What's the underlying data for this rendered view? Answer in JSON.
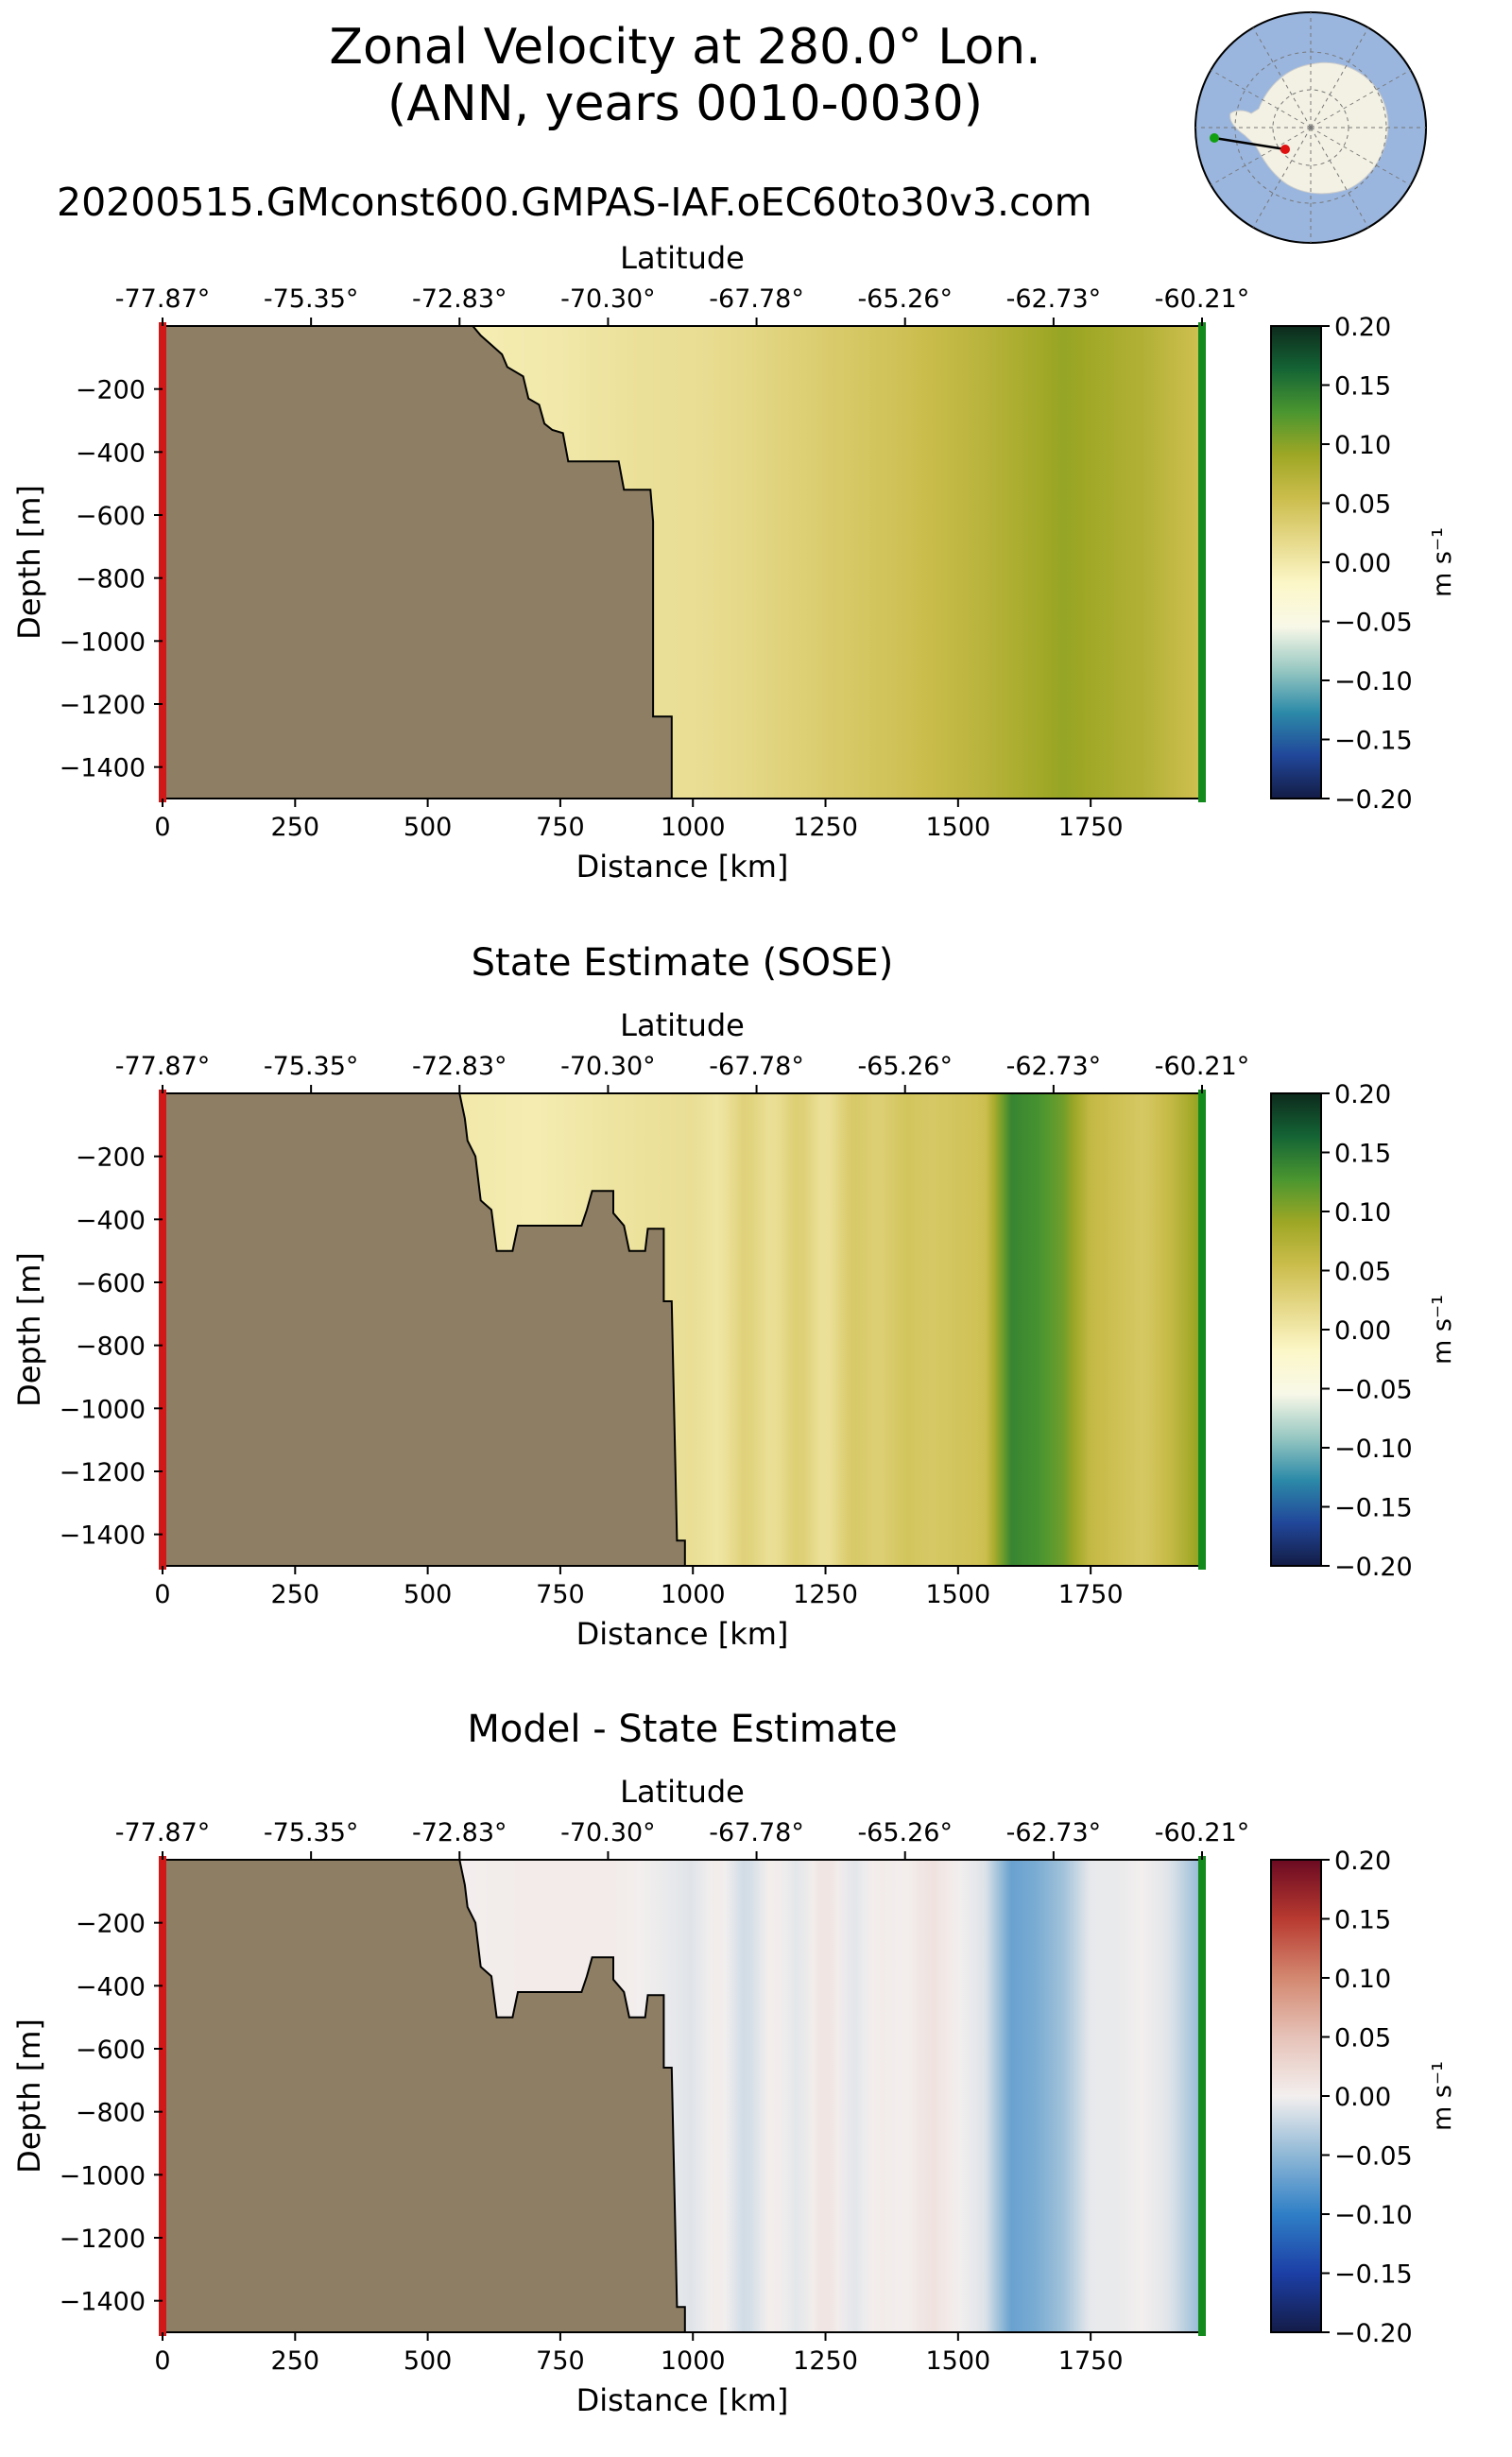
{
  "figure": {
    "title_line1": "Zonal Velocity at 280.0° Lon.",
    "title_line2": "(ANN, years 0010-0030)",
    "subtitle": "20200515.GMconst600.GMPAS-IAF.oEC60to30v3.com"
  },
  "chart_data": [
    {
      "type": "heatmap",
      "title": "",
      "xlabel": "Distance [km]",
      "ylabel": "Depth [m]",
      "top_axis_label": "Latitude",
      "xlim": [
        0,
        1960
      ],
      "ylim": [
        -1500,
        0
      ],
      "x_ticks": [
        0,
        250,
        500,
        750,
        1000,
        1250,
        1500,
        1750
      ],
      "x_tick_labels": [
        "0",
        "250",
        "500",
        "750",
        "1000",
        "1250",
        "1500",
        "1750"
      ],
      "y_ticks": [
        -200,
        -400,
        -600,
        -800,
        -1000,
        -1200,
        -1400
      ],
      "y_tick_labels": [
        "−200",
        "−400",
        "−600",
        "−800",
        "−1000",
        "−1200",
        "−1400"
      ],
      "top_ticks": [
        0,
        280,
        560,
        840,
        1120,
        1400,
        1680,
        1960
      ],
      "top_tick_labels": [
        "-77.87°",
        "-75.35°",
        "-72.83°",
        "-70.30°",
        "-67.78°",
        "-65.26°",
        "-62.73°",
        "-60.21°"
      ],
      "colorbar": {
        "label": "m s⁻¹",
        "min": -0.2,
        "max": 0.2,
        "ticks": [
          "0.20",
          "0.15",
          "0.10",
          "0.05",
          "0.00",
          "−0.05",
          "−0.10",
          "−0.15",
          "−0.20"
        ],
        "colormap": "diverging-blue-white-yellow-green",
        "colors": [
          "#131c45",
          "#21479a",
          "#2c8aa8",
          "#98c8c2",
          "#f8f8e8",
          "#fcf7c8",
          "#e6d98a",
          "#cbbd4c",
          "#9ea725",
          "#4a9630",
          "#146435",
          "#0d2a1c"
        ]
      },
      "bathymetry_km_m": [
        [
          0,
          0
        ],
        [
          0,
          -1500
        ],
        [
          960,
          -1500
        ],
        [
          960,
          -1240
        ],
        [
          925,
          -1240
        ],
        [
          925,
          -620
        ],
        [
          920,
          -520
        ],
        [
          870,
          -520
        ],
        [
          860,
          -430
        ],
        [
          765,
          -430
        ],
        [
          755,
          -340
        ],
        [
          735,
          -330
        ],
        [
          720,
          -310
        ],
        [
          710,
          -250
        ],
        [
          690,
          -230
        ],
        [
          680,
          -160
        ],
        [
          650,
          -130
        ],
        [
          640,
          -90
        ],
        [
          620,
          -60
        ],
        [
          600,
          -30
        ],
        [
          585,
          0
        ]
      ],
      "velocity_profile": {
        "x_km": [
          0,
          500,
          600,
          750,
          900,
          1000,
          1100,
          1250,
          1400,
          1550,
          1700,
          1850,
          1960
        ],
        "u_m_per_s": [
          0,
          0,
          -0.005,
          0.0,
          0.01,
          0.012,
          0.02,
          0.035,
          0.05,
          0.07,
          0.095,
          0.075,
          0.05
        ]
      }
    },
    {
      "type": "heatmap",
      "title": "State Estimate (SOSE)",
      "xlabel": "Distance [km]",
      "ylabel": "Depth [m]",
      "top_axis_label": "Latitude",
      "xlim": [
        0,
        1960
      ],
      "ylim": [
        -1500,
        0
      ],
      "x_ticks": [
        0,
        250,
        500,
        750,
        1000,
        1250,
        1500,
        1750
      ],
      "x_tick_labels": [
        "0",
        "250",
        "500",
        "750",
        "1000",
        "1250",
        "1500",
        "1750"
      ],
      "y_ticks": [
        -200,
        -400,
        -600,
        -800,
        -1000,
        -1200,
        -1400
      ],
      "y_tick_labels": [
        "−200",
        "−400",
        "−600",
        "−800",
        "−1000",
        "−1200",
        "−1400"
      ],
      "top_ticks": [
        0,
        280,
        560,
        840,
        1120,
        1400,
        1680,
        1960
      ],
      "top_tick_labels": [
        "-77.87°",
        "-75.35°",
        "-72.83°",
        "-70.30°",
        "-67.78°",
        "-65.26°",
        "-62.73°",
        "-60.21°"
      ],
      "colorbar": {
        "label": "m s⁻¹",
        "min": -0.2,
        "max": 0.2,
        "ticks": [
          "0.20",
          "0.15",
          "0.10",
          "0.05",
          "0.00",
          "−0.05",
          "−0.10",
          "−0.15",
          "−0.20"
        ],
        "colormap": "diverging-blue-white-yellow-green",
        "colors": [
          "#131c45",
          "#21479a",
          "#2c8aa8",
          "#98c8c2",
          "#f8f8e8",
          "#fcf7c8",
          "#e6d98a",
          "#cbbd4c",
          "#9ea725",
          "#4a9630",
          "#146435",
          "#0d2a1c"
        ]
      },
      "bathymetry_km_m": [
        [
          0,
          0
        ],
        [
          0,
          -1500
        ],
        [
          985,
          -1500
        ],
        [
          985,
          -1420
        ],
        [
          970,
          -1420
        ],
        [
          960,
          -660
        ],
        [
          945,
          -660
        ],
        [
          945,
          -430
        ],
        [
          915,
          -430
        ],
        [
          910,
          -500
        ],
        [
          880,
          -500
        ],
        [
          870,
          -420
        ],
        [
          850,
          -380
        ],
        [
          850,
          -310
        ],
        [
          810,
          -310
        ],
        [
          800,
          -370
        ],
        [
          790,
          -420
        ],
        [
          670,
          -420
        ],
        [
          660,
          -500
        ],
        [
          630,
          -500
        ],
        [
          620,
          -370
        ],
        [
          600,
          -340
        ],
        [
          590,
          -200
        ],
        [
          575,
          -150
        ],
        [
          570,
          -80
        ],
        [
          560,
          0
        ]
      ],
      "velocity_profile": {
        "x_km": [
          0,
          550,
          700,
          850,
          950,
          1000,
          1050,
          1100,
          1150,
          1200,
          1250,
          1300,
          1350,
          1400,
          1450,
          1500,
          1550,
          1600,
          1650,
          1700,
          1750,
          1800,
          1850,
          1900,
          1960
        ],
        "u_m_per_s": [
          0,
          0.0,
          -0.005,
          0.005,
          0.01,
          0.012,
          0.002,
          0.03,
          0.008,
          0.035,
          0.005,
          0.04,
          0.03,
          0.045,
          0.04,
          0.045,
          0.05,
          0.14,
          0.13,
          0.11,
          0.06,
          0.05,
          0.04,
          0.06,
          0.1
        ]
      }
    },
    {
      "type": "heatmap",
      "title": "Model - State Estimate",
      "xlabel": "Distance [km]",
      "ylabel": "Depth [m]",
      "top_axis_label": "Latitude",
      "xlim": [
        0,
        1960
      ],
      "ylim": [
        -1500,
        0
      ],
      "x_ticks": [
        0,
        250,
        500,
        750,
        1000,
        1250,
        1500,
        1750
      ],
      "x_tick_labels": [
        "0",
        "250",
        "500",
        "750",
        "1000",
        "1250",
        "1500",
        "1750"
      ],
      "y_ticks": [
        -200,
        -400,
        -600,
        -800,
        -1000,
        -1200,
        -1400
      ],
      "y_tick_labels": [
        "−200",
        "−400",
        "−600",
        "−800",
        "−1000",
        "−1200",
        "−1400"
      ],
      "top_ticks": [
        0,
        280,
        560,
        840,
        1120,
        1400,
        1680,
        1960
      ],
      "top_tick_labels": [
        "-77.87°",
        "-75.35°",
        "-72.83°",
        "-70.30°",
        "-67.78°",
        "-65.26°",
        "-62.73°",
        "-60.21°"
      ],
      "colorbar": {
        "label": "m s⁻¹",
        "min": -0.2,
        "max": 0.2,
        "ticks": [
          "0.20",
          "0.15",
          "0.10",
          "0.05",
          "0.00",
          "−0.05",
          "−0.10",
          "−0.15",
          "−0.20"
        ],
        "colormap": "diverging-blue-white-red",
        "colors": [
          "#141c48",
          "#1c3fa6",
          "#2f7fc6",
          "#8fb8d6",
          "#f3efee",
          "#e6c2b8",
          "#d38870",
          "#b83a30",
          "#6b0a22"
        ]
      },
      "bathymetry_km_m": [
        [
          0,
          0
        ],
        [
          0,
          -1500
        ],
        [
          985,
          -1500
        ],
        [
          985,
          -1420
        ],
        [
          970,
          -1420
        ],
        [
          960,
          -660
        ],
        [
          945,
          -660
        ],
        [
          945,
          -430
        ],
        [
          915,
          -430
        ],
        [
          910,
          -500
        ],
        [
          880,
          -500
        ],
        [
          870,
          -420
        ],
        [
          850,
          -380
        ],
        [
          850,
          -310
        ],
        [
          810,
          -310
        ],
        [
          800,
          -370
        ],
        [
          790,
          -420
        ],
        [
          670,
          -420
        ],
        [
          660,
          -500
        ],
        [
          630,
          -500
        ],
        [
          620,
          -370
        ],
        [
          600,
          -340
        ],
        [
          590,
          -200
        ],
        [
          575,
          -150
        ],
        [
          570,
          -80
        ],
        [
          560,
          0
        ]
      ],
      "velocity_profile": {
        "x_km": [
          0,
          550,
          700,
          850,
          950,
          1000,
          1050,
          1100,
          1150,
          1200,
          1250,
          1300,
          1350,
          1400,
          1450,
          1500,
          1550,
          1600,
          1650,
          1700,
          1750,
          1800,
          1850,
          1900,
          1960
        ],
        "u_m_per_s": [
          0,
          0.0,
          0.005,
          0.005,
          -0.005,
          -0.01,
          0.005,
          -0.02,
          0.005,
          -0.01,
          0.015,
          -0.01,
          0.005,
          0.0,
          0.015,
          0.0,
          -0.01,
          -0.07,
          -0.06,
          -0.04,
          -0.005,
          -0.005,
          0.0,
          -0.01,
          -0.05
        ]
      }
    }
  ],
  "map_inset": {
    "ocean_color": "#9ab6de",
    "land_color": "#f3f1e3",
    "section_start_color": "#e01010",
    "section_end_color": "#10a010"
  }
}
